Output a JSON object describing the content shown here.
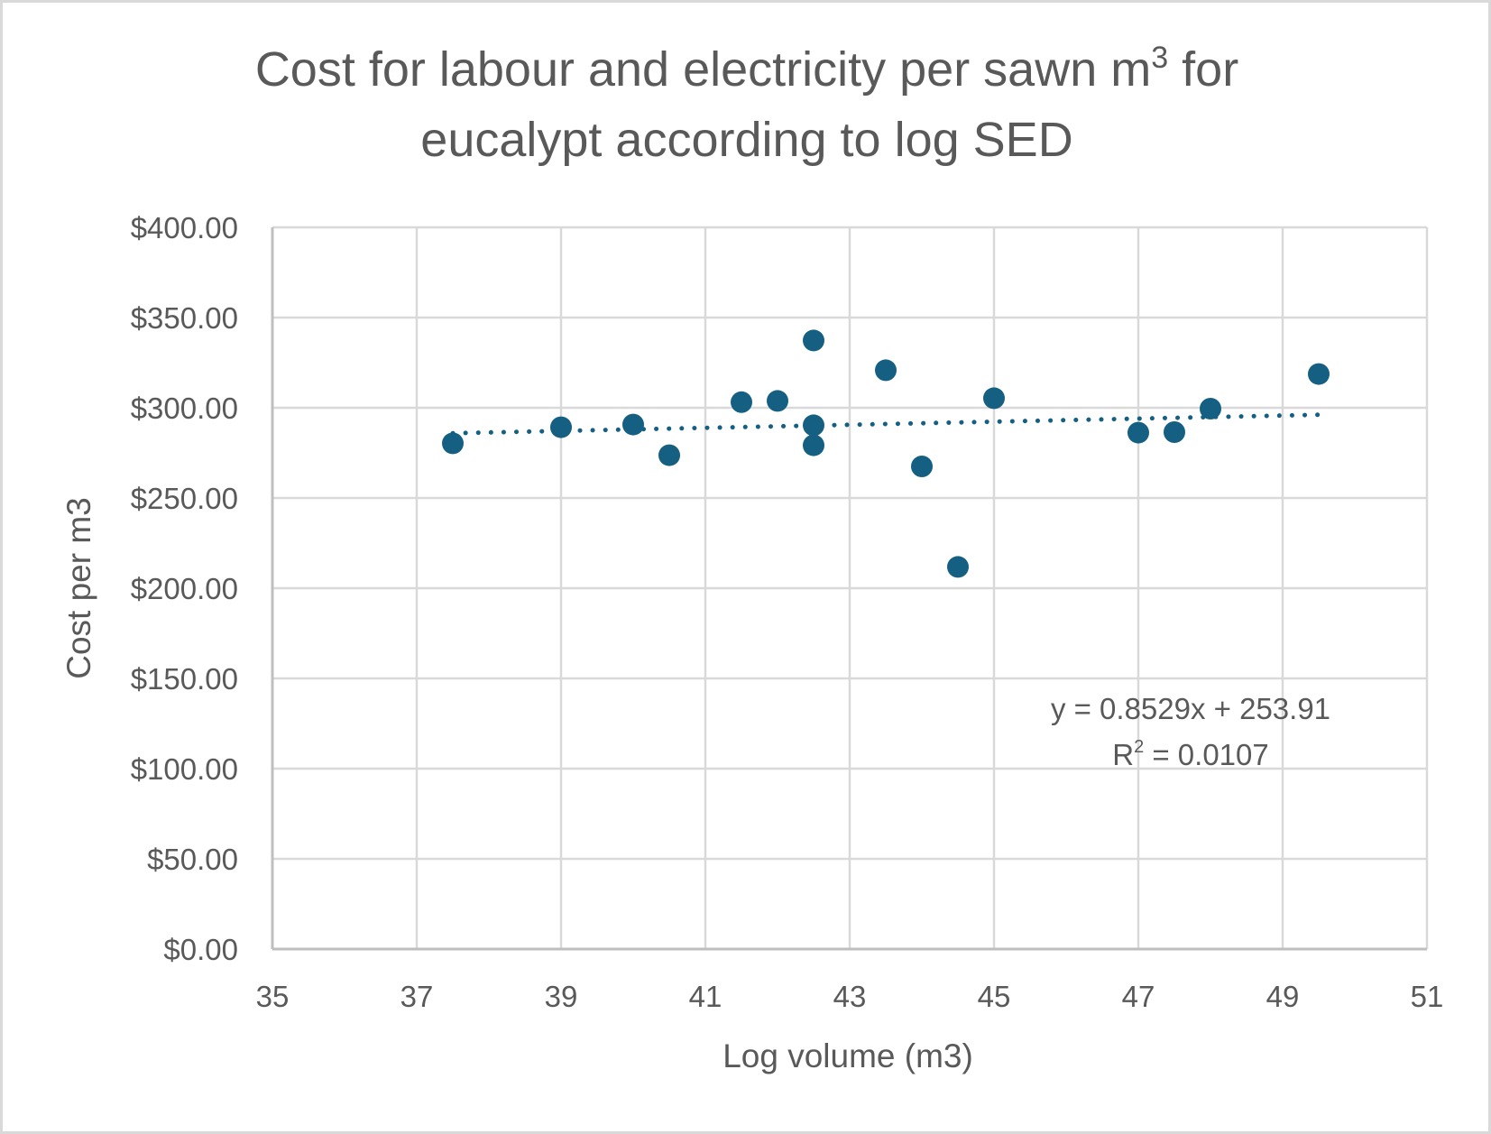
{
  "chart_data": {
    "type": "scatter",
    "title_line1_main": "Cost for labour and electricity per sawn m",
    "title_line1_sup": "3",
    "title_line1_tail": " for",
    "title_line2": "eucalypt according to log SED",
    "xlabel": "Log volume (m3)",
    "ylabel": "Cost per m3",
    "xlim": [
      35,
      51
    ],
    "ylim": [
      0,
      400
    ],
    "x_ticks": [
      35,
      37,
      39,
      41,
      43,
      45,
      47,
      49,
      51
    ],
    "y_ticks": [
      0,
      50,
      100,
      150,
      200,
      250,
      300,
      350,
      400
    ],
    "y_tick_labels": [
      "$0.00",
      "$50.00",
      "$100.00",
      "$150.00",
      "$200.00",
      "$250.00",
      "$300.00",
      "$350.00",
      "$400.00"
    ],
    "x_tick_labels": [
      "35",
      "37",
      "39",
      "41",
      "43",
      "45",
      "47",
      "49",
      "51"
    ],
    "grid": true,
    "series": [
      {
        "name": "Cost per m3",
        "color": "#156082",
        "points": [
          {
            "x": 37.5,
            "y": 280.3
          },
          {
            "x": 39.0,
            "y": 289.2
          },
          {
            "x": 40.0,
            "y": 290.7
          },
          {
            "x": 40.5,
            "y": 273.7
          },
          {
            "x": 41.5,
            "y": 303.1
          },
          {
            "x": 42.0,
            "y": 303.8
          },
          {
            "x": 42.5,
            "y": 337.3
          },
          {
            "x": 42.5,
            "y": 290.3
          },
          {
            "x": 42.5,
            "y": 279.2
          },
          {
            "x": 43.5,
            "y": 320.8
          },
          {
            "x": 44.0,
            "y": 267.5
          },
          {
            "x": 44.5,
            "y": 211.8
          },
          {
            "x": 45.0,
            "y": 305.3
          },
          {
            "x": 47.0,
            "y": 286.2
          },
          {
            "x": 47.5,
            "y": 286.5
          },
          {
            "x": 48.0,
            "y": 299.5
          },
          {
            "x": 49.5,
            "y": 318.7
          }
        ]
      }
    ],
    "trendline": {
      "type": "linear",
      "slope": 0.8529,
      "intercept": 253.91,
      "x_range": [
        37.5,
        49.5
      ],
      "style": "dotted",
      "color": "#156082",
      "equation_label": "y = 0.8529x + 253.91",
      "r2_label_prefix": "R",
      "r2_label_sup": "2",
      "r2_label_value": " = 0.0107"
    }
  }
}
